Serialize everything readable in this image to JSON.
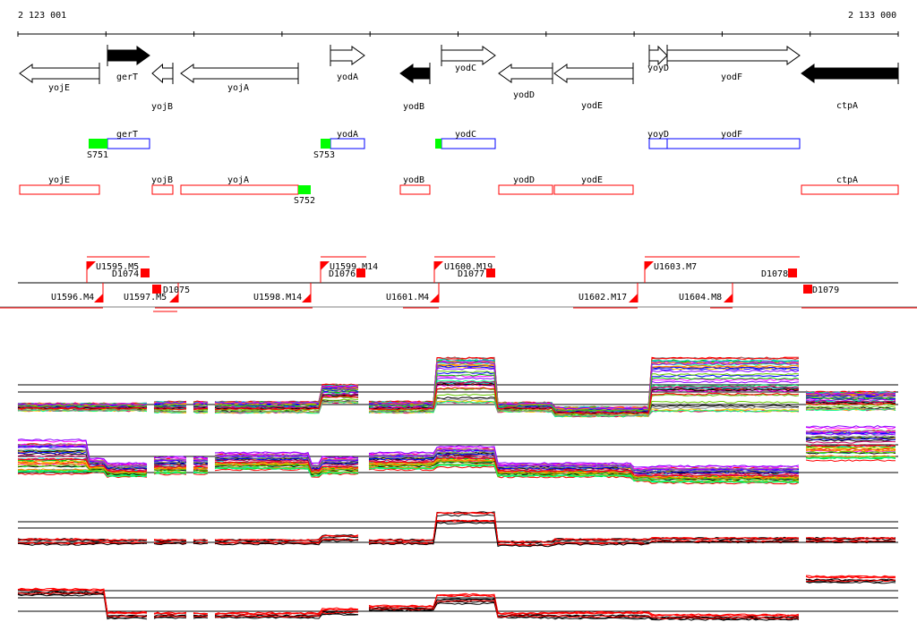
{
  "ruler": {
    "start": "2 123 001",
    "end": "2 133 000"
  },
  "genes": [
    {
      "name": "yojE",
      "strand": "-",
      "filled": false
    },
    {
      "name": "gerT",
      "strand": "+",
      "filled": true
    },
    {
      "name": "yojB",
      "strand": "-",
      "filled": false
    },
    {
      "name": "yojA",
      "strand": "-",
      "filled": false
    },
    {
      "name": "yodA",
      "strand": "+",
      "filled": false
    },
    {
      "name": "yodB",
      "strand": "-",
      "filled": true
    },
    {
      "name": "yodC",
      "strand": "+",
      "filled": false
    },
    {
      "name": "yodD",
      "strand": "-",
      "filled": false
    },
    {
      "name": "yodE",
      "strand": "-",
      "filled": false
    },
    {
      "name": "yoyD",
      "strand": "+",
      "filled": false
    },
    {
      "name": "yodF",
      "strand": "+",
      "filled": false
    },
    {
      "name": "ctpA",
      "strand": "-",
      "filled": true
    }
  ],
  "forward_operons": [
    {
      "genes": "gerT",
      "site": "S751"
    },
    {
      "genes": "yodA",
      "site": "S753"
    },
    {
      "genes": "yodC",
      "site": ""
    },
    {
      "genes": "yoyD",
      "site": ""
    },
    {
      "genes": "yodF",
      "site": ""
    }
  ],
  "reverse_operons": [
    {
      "genes": "yojE",
      "site": ""
    },
    {
      "genes": "yojB",
      "site": ""
    },
    {
      "genes": "yojA",
      "site": "S752"
    },
    {
      "genes": "yodB",
      "site": ""
    },
    {
      "genes": "yodD",
      "site": ""
    },
    {
      "genes": "yodE",
      "site": ""
    },
    {
      "genes": "ctpA",
      "site": ""
    }
  ],
  "segments": [
    "U1595.M5",
    "D1074",
    "U1596.M4",
    "U1597.M5",
    "D1075",
    "U1598.M14",
    "U1599.M14",
    "D1076",
    "U1600.M19",
    "D1077",
    "U1601.M4",
    "U1602.M17",
    "U1603.M7",
    "D1078",
    "U1604.M8",
    "D1079"
  ],
  "colors": {
    "operon_forward": "#0000ff",
    "operon_reverse": "#ff0000",
    "site": "#00ff00",
    "segment": "#ff0000"
  }
}
